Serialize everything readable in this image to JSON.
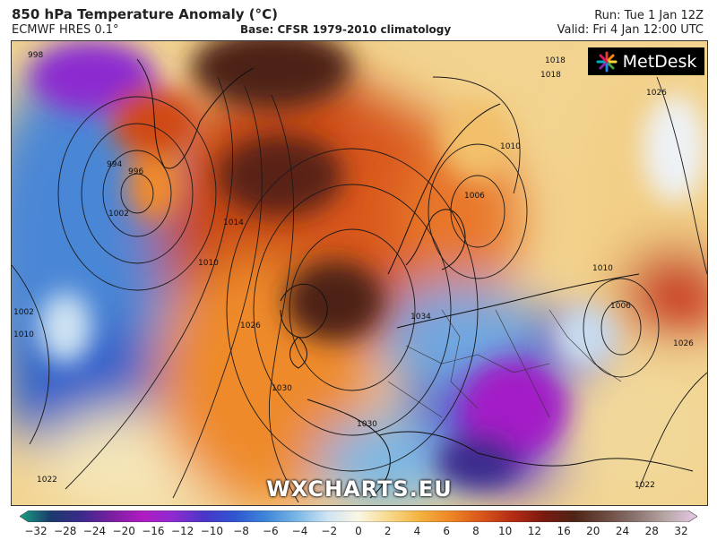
{
  "header": {
    "title": "850 hPa Temperature Anomaly (°C)",
    "model": "ECMWF HRES 0.1°",
    "base": "Base: CFSR 1979-2010 climatology",
    "run": "Run: Tue 1 Jan 12Z",
    "valid": "Valid: Fri 4 Jan 12:00 UTC"
  },
  "logo": {
    "text": "MetDesk"
  },
  "watermark": {
    "text": "WXCHARTS.EU"
  },
  "colorbar": {
    "ticks": [
      "−32",
      "−28",
      "−24",
      "−20",
      "−16",
      "−12",
      "−10",
      "−8",
      "−6",
      "−4",
      "−2",
      "0",
      "2",
      "4",
      "6",
      "8",
      "10",
      "12",
      "16",
      "20",
      "24",
      "28",
      "32"
    ],
    "colors": [
      "#1aa083",
      "#1b3a6b",
      "#3b2a8c",
      "#7b1fa2",
      "#b01cc2",
      "#8c2bd0",
      "#4a36c8",
      "#2f56d1",
      "#3f86d8",
      "#7ab7e6",
      "#cfe4f3",
      "#fbf6e4",
      "#f7d98a",
      "#f3b23f",
      "#ee8526",
      "#d8561a",
      "#b52c14",
      "#7a1a10",
      "#4e2416",
      "#6b4a40",
      "#8b7470",
      "#b8a8a6",
      "#e8c8e8"
    ]
  },
  "isobar_labels": [
    "998",
    "996",
    "994",
    "1002",
    "1014",
    "1010",
    "1002",
    "1010",
    "1026",
    "1030",
    "1030",
    "1034",
    "1018",
    "1010",
    "1006",
    "1026",
    "1006",
    "1010",
    "1026",
    "1022",
    "1022",
    "1018"
  ]
}
